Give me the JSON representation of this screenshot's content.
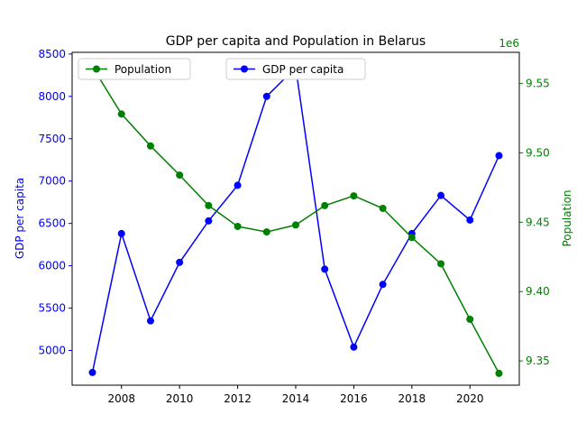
{
  "chart_data": {
    "type": "line",
    "title": "GDP per capita and Population in Belarus",
    "xlabel": "",
    "x": [
      2007,
      2008,
      2009,
      2010,
      2011,
      2012,
      2013,
      2014,
      2015,
      2016,
      2017,
      2018,
      2019,
      2020,
      2021
    ],
    "xlim": [
      2006.3,
      2021.7
    ],
    "x_ticks": [
      2008,
      2010,
      2012,
      2014,
      2016,
      2018,
      2020
    ],
    "grid": false,
    "axes": {
      "left": {
        "label": "GDP per capita",
        "color": "#0000ff",
        "ylim": [
          4590,
          8520
        ],
        "ticks": [
          5000,
          5500,
          6000,
          6500,
          7000,
          7500,
          8000,
          8500
        ]
      },
      "right": {
        "label": "Population",
        "color": "#008000",
        "offset_text": "1e6",
        "ylim": [
          9.3325,
          9.5725
        ],
        "ticks": [
          9.35,
          9.4,
          9.45,
          9.5,
          9.55
        ],
        "tick_labels": [
          "9.35",
          "9.40",
          "9.45",
          "9.50",
          "9.55"
        ]
      }
    },
    "series": [
      {
        "name": "GDP per capita",
        "axis": "left",
        "color": "#0000ff",
        "marker": "circle",
        "values": [
          4740,
          6380,
          5350,
          6040,
          6530,
          6950,
          8000,
          8340,
          5960,
          5040,
          5780,
          6380,
          6830,
          6540,
          7300
        ]
      },
      {
        "name": "Population",
        "axis": "right",
        "color": "#008000",
        "marker": "circle",
        "values": [
          9.562,
          9.528,
          9.505,
          9.484,
          9.462,
          9.447,
          9.443,
          9.448,
          9.462,
          9.469,
          9.46,
          9.439,
          9.42,
          9.38,
          9.341
        ]
      }
    ],
    "legends": [
      {
        "placement": "upper-left",
        "entries": [
          "Population"
        ]
      },
      {
        "placement": "upper-center",
        "entries": [
          "GDP per capita"
        ]
      }
    ]
  }
}
